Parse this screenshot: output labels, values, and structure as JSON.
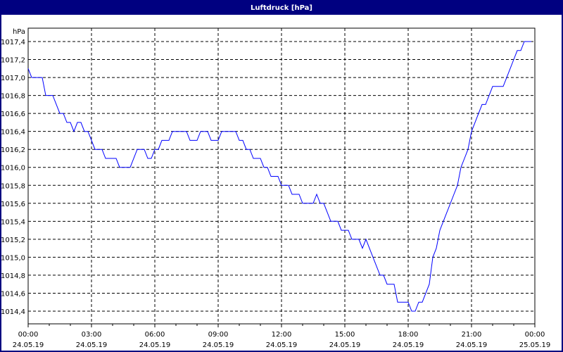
{
  "window": {
    "title": "Luftdruck [hPa]"
  },
  "chart_data": {
    "type": "line",
    "title": "Luftdruck [hPa]",
    "ylabel": "hPa",
    "ylim": [
      1014.4,
      1017.4
    ],
    "yticks": [
      "1014,4",
      "1014,6",
      "1014,8",
      "1015,0",
      "1015,2",
      "1015,4",
      "1015,6",
      "1015,8",
      "1016,0",
      "1016,2",
      "1016,4",
      "1016,6",
      "1016,8",
      "1017,0",
      "1017,2",
      "1017,4"
    ],
    "xticks": [
      {
        "time": "00:00",
        "date": "24.05.19"
      },
      {
        "time": "03:00",
        "date": "24.05.19"
      },
      {
        "time": "06:00",
        "date": "24.05.19"
      },
      {
        "time": "09:00",
        "date": "24.05.19"
      },
      {
        "time": "12:00",
        "date": "24.05.19"
      },
      {
        "time": "15:00",
        "date": "24.05.19"
      },
      {
        "time": "18:00",
        "date": "24.05.19"
      },
      {
        "time": "21:00",
        "date": "24.05.19"
      },
      {
        "time": "00:00",
        "date": "25.05.19"
      }
    ],
    "grid": true,
    "line_color": "#0000ff",
    "points": [
      [
        "00:00",
        1017.1
      ],
      [
        "00:10",
        1017.0
      ],
      [
        "00:40",
        1017.0
      ],
      [
        "00:50",
        1016.8
      ],
      [
        "01:10",
        1016.8
      ],
      [
        "01:30",
        1016.6
      ],
      [
        "01:40",
        1016.6
      ],
      [
        "01:50",
        1016.5
      ],
      [
        "02:00",
        1016.5
      ],
      [
        "02:10",
        1016.4
      ],
      [
        "02:20",
        1016.5
      ],
      [
        "02:30",
        1016.5
      ],
      [
        "02:40",
        1016.4
      ],
      [
        "02:50",
        1016.4
      ],
      [
        "03:00",
        1016.3
      ],
      [
        "03:10",
        1016.2
      ],
      [
        "03:30",
        1016.2
      ],
      [
        "03:40",
        1016.1
      ],
      [
        "04:10",
        1016.1
      ],
      [
        "04:20",
        1016.0
      ],
      [
        "04:50",
        1016.0
      ],
      [
        "05:10",
        1016.2
      ],
      [
        "05:30",
        1016.2
      ],
      [
        "05:40",
        1016.1
      ],
      [
        "05:50",
        1016.1
      ],
      [
        "06:00",
        1016.2
      ],
      [
        "06:10",
        1016.2
      ],
      [
        "06:20",
        1016.3
      ],
      [
        "06:40",
        1016.3
      ],
      [
        "06:50",
        1016.4
      ],
      [
        "07:30",
        1016.4
      ],
      [
        "07:40",
        1016.3
      ],
      [
        "08:00",
        1016.3
      ],
      [
        "08:10",
        1016.4
      ],
      [
        "08:30",
        1016.4
      ],
      [
        "08:40",
        1016.3
      ],
      [
        "09:00",
        1016.3
      ],
      [
        "09:10",
        1016.4
      ],
      [
        "09:50",
        1016.4
      ],
      [
        "10:00",
        1016.3
      ],
      [
        "10:10",
        1016.3
      ],
      [
        "10:20",
        1016.2
      ],
      [
        "10:30",
        1016.2
      ],
      [
        "10:40",
        1016.1
      ],
      [
        "11:00",
        1016.1
      ],
      [
        "11:10",
        1016.0
      ],
      [
        "11:20",
        1016.0
      ],
      [
        "11:30",
        1015.9
      ],
      [
        "11:50",
        1015.9
      ],
      [
        "12:00",
        1015.8
      ],
      [
        "12:20",
        1015.8
      ],
      [
        "12:30",
        1015.7
      ],
      [
        "12:50",
        1015.7
      ],
      [
        "13:00",
        1015.6
      ],
      [
        "13:30",
        1015.6
      ],
      [
        "13:40",
        1015.7
      ],
      [
        "13:50",
        1015.6
      ],
      [
        "14:00",
        1015.6
      ],
      [
        "14:10",
        1015.5
      ],
      [
        "14:20",
        1015.4
      ],
      [
        "14:40",
        1015.4
      ],
      [
        "14:50",
        1015.3
      ],
      [
        "15:10",
        1015.3
      ],
      [
        "15:20",
        1015.2
      ],
      [
        "15:40",
        1015.2
      ],
      [
        "15:50",
        1015.1
      ],
      [
        "16:00",
        1015.2
      ],
      [
        "16:20",
        1015.0
      ],
      [
        "16:40",
        1014.8
      ],
      [
        "16:50",
        1014.8
      ],
      [
        "17:00",
        1014.7
      ],
      [
        "17:20",
        1014.7
      ],
      [
        "17:30",
        1014.5
      ],
      [
        "18:00",
        1014.5
      ],
      [
        "18:10",
        1014.4
      ],
      [
        "18:20",
        1014.4
      ],
      [
        "18:30",
        1014.5
      ],
      [
        "18:40",
        1014.5
      ],
      [
        "19:00",
        1014.7
      ],
      [
        "19:10",
        1015.0
      ],
      [
        "19:20",
        1015.1
      ],
      [
        "19:30",
        1015.3
      ],
      [
        "19:40",
        1015.4
      ],
      [
        "19:50",
        1015.5
      ],
      [
        "20:00",
        1015.6
      ],
      [
        "20:10",
        1015.7
      ],
      [
        "20:20",
        1015.8
      ],
      [
        "20:30",
        1016.0
      ],
      [
        "20:40",
        1016.1
      ],
      [
        "20:50",
        1016.2
      ],
      [
        "21:00",
        1016.4
      ],
      [
        "21:10",
        1016.5
      ],
      [
        "21:20",
        1016.6
      ],
      [
        "21:30",
        1016.7
      ],
      [
        "21:40",
        1016.7
      ],
      [
        "21:50",
        1016.8
      ],
      [
        "22:00",
        1016.9
      ],
      [
        "22:30",
        1016.9
      ],
      [
        "22:40",
        1017.0
      ],
      [
        "22:50",
        1017.1
      ],
      [
        "23:00",
        1017.2
      ],
      [
        "23:10",
        1017.3
      ],
      [
        "23:20",
        1017.3
      ],
      [
        "23:30",
        1017.4
      ],
      [
        "23:50",
        1017.4
      ]
    ]
  }
}
